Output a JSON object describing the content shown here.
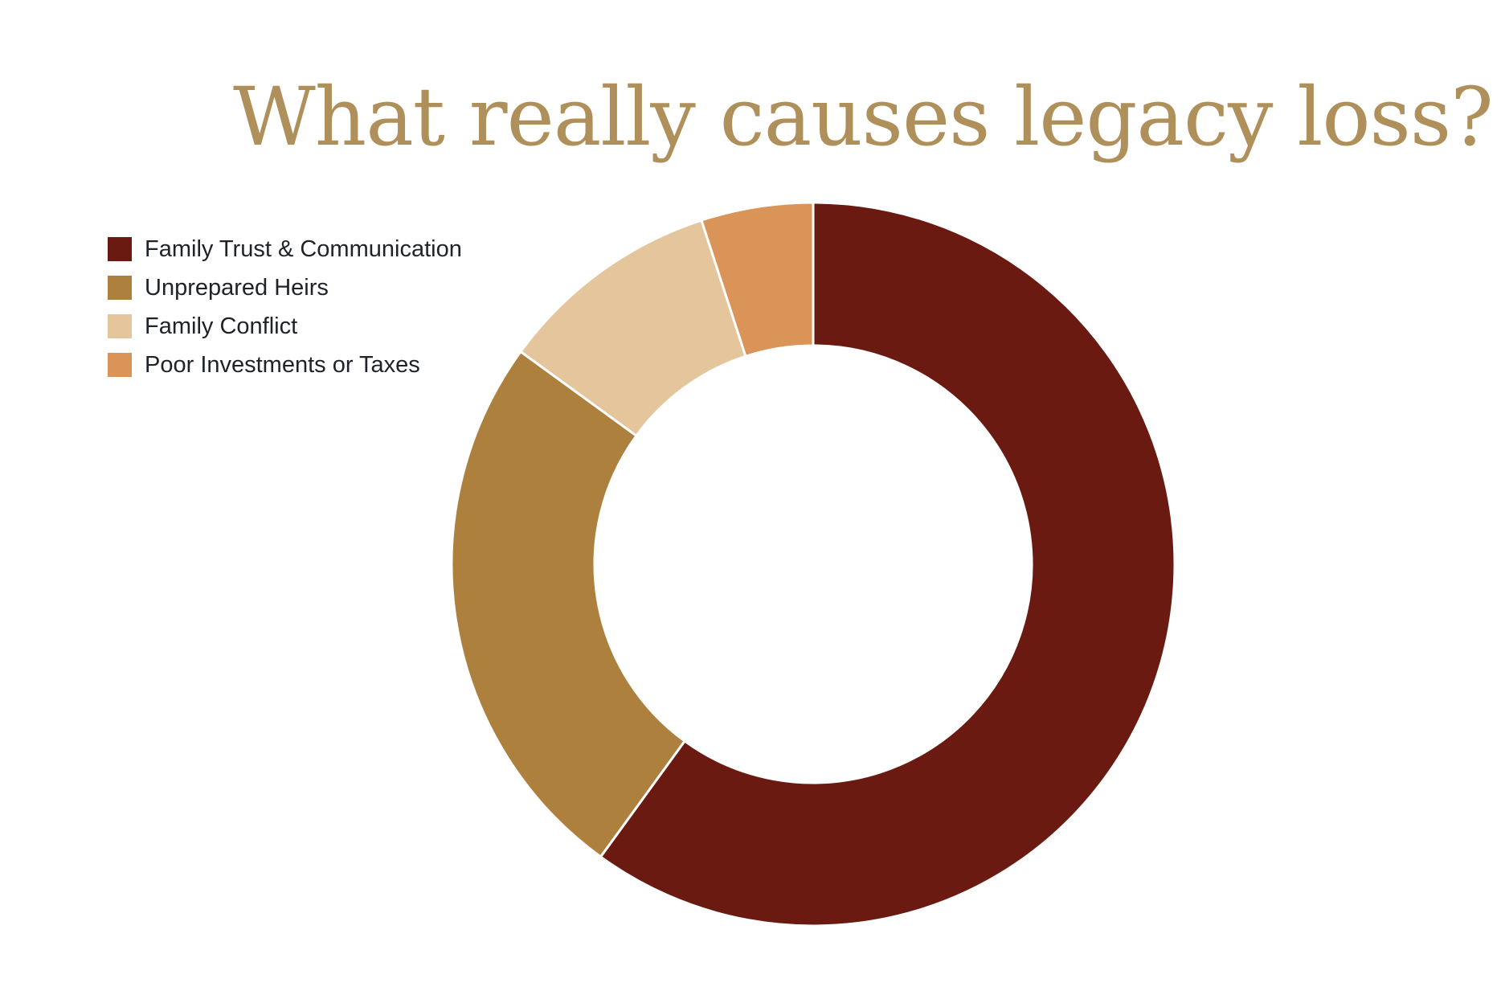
{
  "chart_data": {
    "type": "pie",
    "donut": true,
    "title": "What really causes legacy loss?",
    "legend_position": "top-left",
    "categories": [
      "Family Trust & Communication",
      "Unprepared Heirs",
      "Family Conflict",
      "Poor Investments or Taxes"
    ],
    "values": [
      60,
      25,
      10,
      5
    ],
    "colors": [
      "#6a1a10",
      "#ae803e",
      "#e4c59c",
      "#da9457"
    ]
  }
}
